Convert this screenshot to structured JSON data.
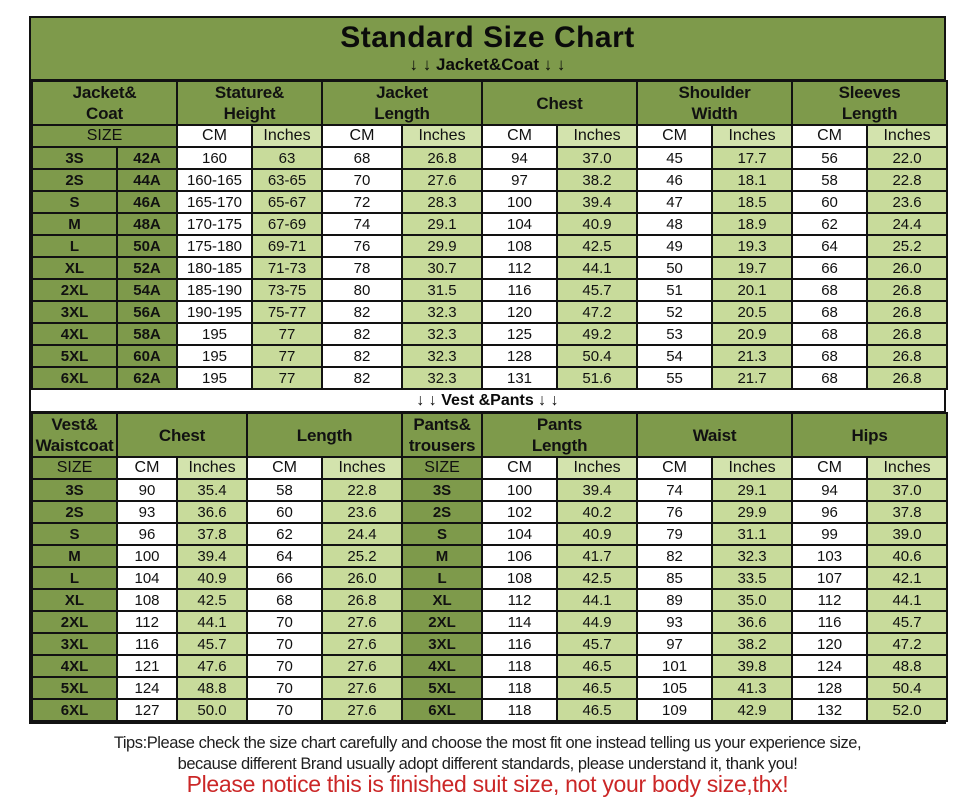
{
  "page": {
    "title": "Standard Size Chart",
    "section1_label": "↓ ↓  Jacket&Coat ↓ ↓",
    "section2_label": "↓ ↓  Vest &Pants ↓ ↓",
    "tips_line1": "Tips:Please check the size chart carefully and choose the most fit one instead telling us your experience size,",
    "tips_line2": "because different Brand usually adopt different standards, please understand it, thank you!",
    "notice": "Please notice this is finished suit size, not your body size,thx!"
  },
  "colors": {
    "olive_green": "#7e9a4b",
    "light_green": "#c8db9b",
    "header_inches_green": "#d3e3ad",
    "cell_white": "#ffffff",
    "border_black": "#121212",
    "notice_red": "#cb2727"
  },
  "chart_data": [
    {
      "type": "table",
      "title": "Jacket&Coat",
      "column_groups": [
        "Jacket&\nCoat",
        "Stature&\nHeight",
        "Jacket\nLength",
        "Chest",
        "Shoulder\nWidth",
        "Sleeves\nLength"
      ],
      "sub_headers": [
        "SIZE",
        "CM",
        "Inches",
        "CM",
        "Inches",
        "CM",
        "Inches",
        "CM",
        "Inches",
        "CM",
        "Inches"
      ],
      "rows": [
        [
          "3S",
          "42A",
          "160",
          "63",
          "68",
          "26.8",
          "94",
          "37.0",
          "45",
          "17.7",
          "56",
          "22.0"
        ],
        [
          "2S",
          "44A",
          "160-165",
          "63-65",
          "70",
          "27.6",
          "97",
          "38.2",
          "46",
          "18.1",
          "58",
          "22.8"
        ],
        [
          "S",
          "46A",
          "165-170",
          "65-67",
          "72",
          "28.3",
          "100",
          "39.4",
          "47",
          "18.5",
          "60",
          "23.6"
        ],
        [
          "M",
          "48A",
          "170-175",
          "67-69",
          "74",
          "29.1",
          "104",
          "40.9",
          "48",
          "18.9",
          "62",
          "24.4"
        ],
        [
          "L",
          "50A",
          "175-180",
          "69-71",
          "76",
          "29.9",
          "108",
          "42.5",
          "49",
          "19.3",
          "64",
          "25.2"
        ],
        [
          "XL",
          "52A",
          "180-185",
          "71-73",
          "78",
          "30.7",
          "112",
          "44.1",
          "50",
          "19.7",
          "66",
          "26.0"
        ],
        [
          "2XL",
          "54A",
          "185-190",
          "73-75",
          "80",
          "31.5",
          "116",
          "45.7",
          "51",
          "20.1",
          "68",
          "26.8"
        ],
        [
          "3XL",
          "56A",
          "190-195",
          "75-77",
          "82",
          "32.3",
          "120",
          "47.2",
          "52",
          "20.5",
          "68",
          "26.8"
        ],
        [
          "4XL",
          "58A",
          "195",
          "77",
          "82",
          "32.3",
          "125",
          "49.2",
          "53",
          "20.9",
          "68",
          "26.8"
        ],
        [
          "5XL",
          "60A",
          "195",
          "77",
          "82",
          "32.3",
          "128",
          "50.4",
          "54",
          "21.3",
          "68",
          "26.8"
        ],
        [
          "6XL",
          "62A",
          "195",
          "77",
          "82",
          "32.3",
          "131",
          "51.6",
          "55",
          "21.7",
          "68",
          "26.8"
        ]
      ]
    },
    {
      "type": "table",
      "title": "Vest &Pants",
      "column_groups": [
        "Vest&\nWaistcoat",
        "Chest",
        "Length",
        "Pants&\ntrousers",
        "Pants\nLength",
        "Waist",
        "Hips"
      ],
      "sub_headers": [
        "SIZE",
        "CM",
        "Inches",
        "CM",
        "Inches",
        "SIZE",
        "CM",
        "Inches",
        "CM",
        "Inches",
        "CM",
        "Inches"
      ],
      "rows": [
        [
          "3S",
          "90",
          "35.4",
          "58",
          "22.8",
          "3S",
          "100",
          "39.4",
          "74",
          "29.1",
          "94",
          "37.0"
        ],
        [
          "2S",
          "93",
          "36.6",
          "60",
          "23.6",
          "2S",
          "102",
          "40.2",
          "76",
          "29.9",
          "96",
          "37.8"
        ],
        [
          "S",
          "96",
          "37.8",
          "62",
          "24.4",
          "S",
          "104",
          "40.9",
          "79",
          "31.1",
          "99",
          "39.0"
        ],
        [
          "M",
          "100",
          "39.4",
          "64",
          "25.2",
          "M",
          "106",
          "41.7",
          "82",
          "32.3",
          "103",
          "40.6"
        ],
        [
          "L",
          "104",
          "40.9",
          "66",
          "26.0",
          "L",
          "108",
          "42.5",
          "85",
          "33.5",
          "107",
          "42.1"
        ],
        [
          "XL",
          "108",
          "42.5",
          "68",
          "26.8",
          "XL",
          "112",
          "44.1",
          "89",
          "35.0",
          "112",
          "44.1"
        ],
        [
          "2XL",
          "112",
          "44.1",
          "70",
          "27.6",
          "2XL",
          "114",
          "44.9",
          "93",
          "36.6",
          "116",
          "45.7"
        ],
        [
          "3XL",
          "116",
          "45.7",
          "70",
          "27.6",
          "3XL",
          "116",
          "45.7",
          "97",
          "38.2",
          "120",
          "47.2"
        ],
        [
          "4XL",
          "121",
          "47.6",
          "70",
          "27.6",
          "4XL",
          "118",
          "46.5",
          "101",
          "39.8",
          "124",
          "48.8"
        ],
        [
          "5XL",
          "124",
          "48.8",
          "70",
          "27.6",
          "5XL",
          "118",
          "46.5",
          "105",
          "41.3",
          "128",
          "50.4"
        ],
        [
          "6XL",
          "127",
          "50.0",
          "70",
          "27.6",
          "6XL",
          "118",
          "46.5",
          "109",
          "42.9",
          "132",
          "52.0"
        ]
      ]
    }
  ]
}
